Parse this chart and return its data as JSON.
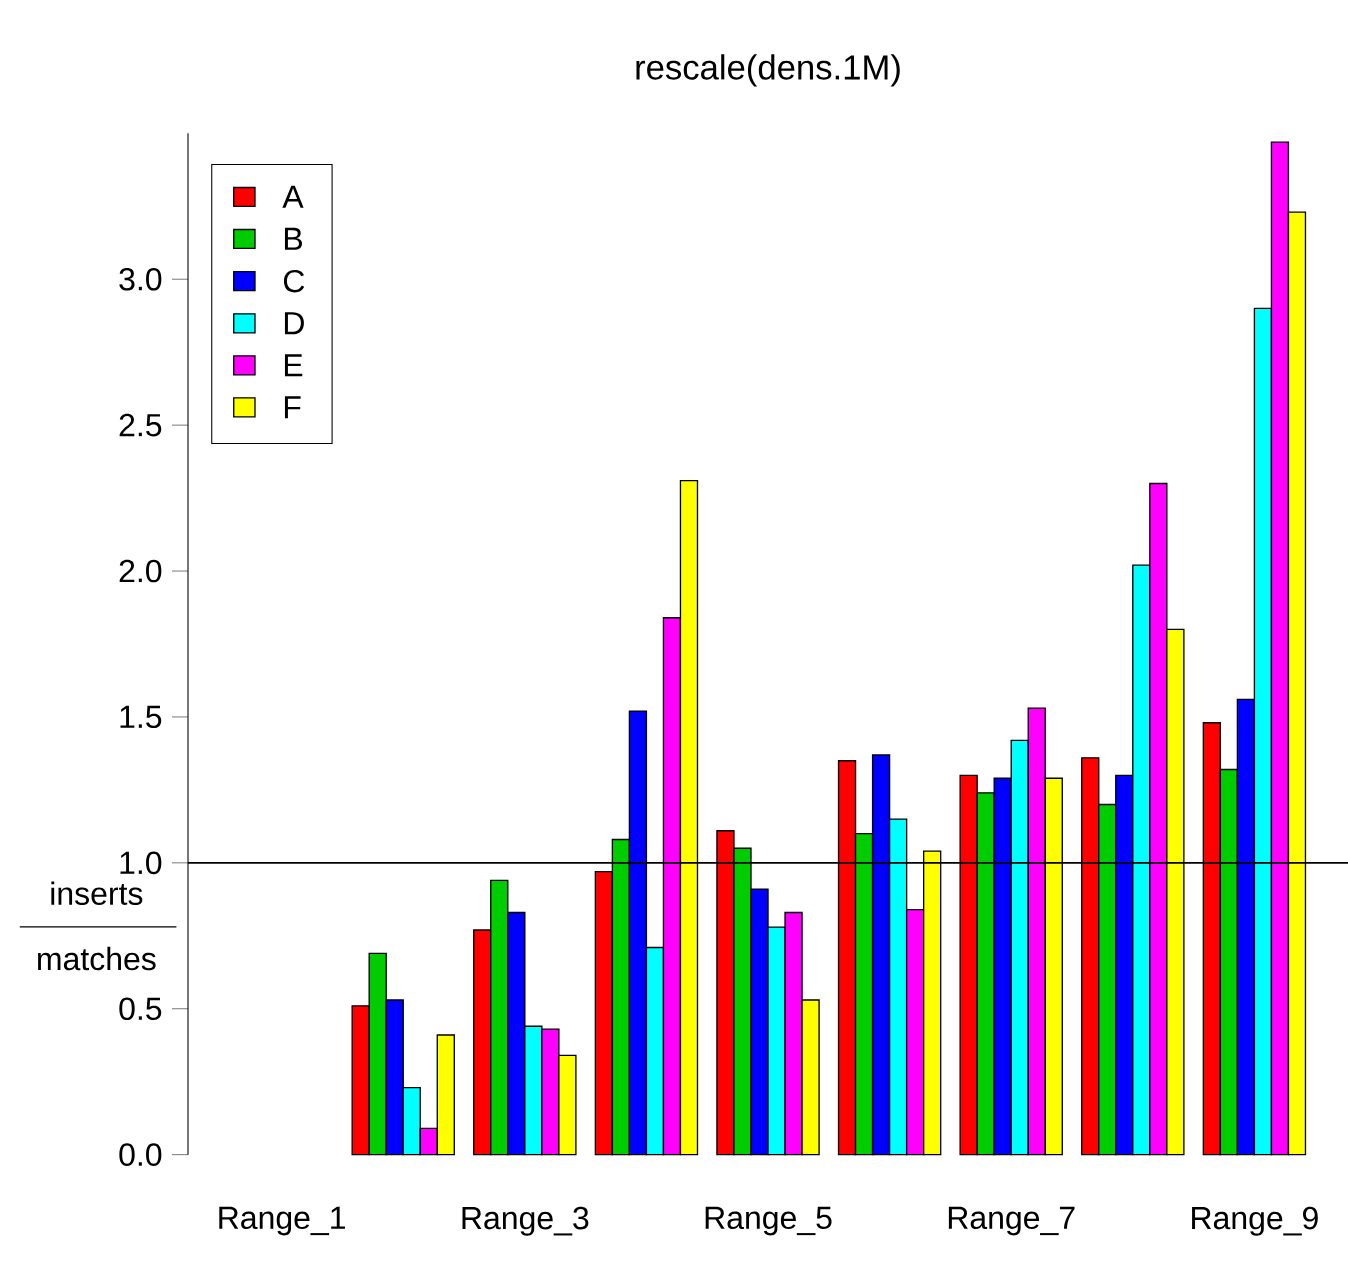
{
  "chart_data": {
    "type": "bar",
    "title": "rescale(dens.1M)",
    "categories": [
      "Range_1",
      null,
      "Range_3",
      null,
      "Range_5",
      null,
      "Range_7",
      null,
      "Range_9"
    ],
    "series": [
      {
        "name": "A",
        "color": "#ff0000",
        "values": [
          null,
          0.51,
          0.77,
          0.97,
          1.11,
          1.35,
          1.3,
          1.36,
          1.48
        ]
      },
      {
        "name": "B",
        "color": "#00cd00",
        "values": [
          null,
          0.69,
          0.94,
          1.08,
          1.05,
          1.1,
          1.24,
          1.2,
          1.32
        ]
      },
      {
        "name": "C",
        "color": "#0000ff",
        "values": [
          null,
          0.53,
          0.83,
          1.52,
          0.91,
          1.37,
          1.29,
          1.3,
          1.56
        ]
      },
      {
        "name": "D",
        "color": "#00ffff",
        "values": [
          null,
          0.23,
          0.44,
          0.71,
          0.78,
          1.15,
          1.42,
          2.02,
          2.9
        ]
      },
      {
        "name": "E",
        "color": "#ff00ff",
        "values": [
          null,
          0.09,
          0.43,
          1.84,
          0.83,
          0.84,
          1.53,
          2.3,
          3.47
        ]
      },
      {
        "name": "F",
        "color": "#ffff00",
        "values": [
          null,
          0.41,
          0.34,
          2.31,
          0.53,
          1.04,
          1.29,
          1.8,
          3.23
        ]
      }
    ],
    "ylim": [
      0,
      3.5
    ],
    "yticks": [
      {
        "value": 0,
        "label": "0.0"
      },
      0.5,
      {
        "value": 1,
        "label": "1.0"
      },
      1.5,
      {
        "value": 2,
        "label": "2.0"
      },
      2.5,
      {
        "value": 3,
        "label": "3.0"
      }
    ],
    "ref_lines": [
      {
        "axis": "y",
        "value": 1,
        "color": "#000000"
      }
    ],
    "annotations": [
      "inserts",
      "matches"
    ],
    "legend": "top left",
    "grid": false
  }
}
